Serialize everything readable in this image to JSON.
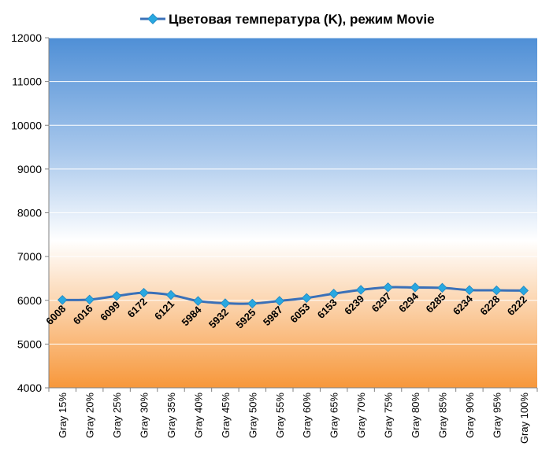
{
  "chart_data": {
    "type": "line",
    "title": "Цветовая температура (K), режим Movie",
    "categories": [
      "Gray 15%",
      "Gray 20%",
      "Gray 25%",
      "Gray 30%",
      "Gray 35%",
      "Gray 40%",
      "Gray 45%",
      "Gray 50%",
      "Gray 55%",
      "Gray 60%",
      "Gray 65%",
      "Gray 70%",
      "Gray 75%",
      "Gray 80%",
      "Gray 85%",
      "Gray 90%",
      "Gray 95%",
      "Gray 100%"
    ],
    "series": [
      {
        "name": "Цветовая температура (K), режим Movie",
        "values": [
          6008,
          6016,
          6099,
          6172,
          6121,
          5984,
          5932,
          5925,
          5987,
          6053,
          6153,
          6239,
          6297,
          6294,
          6285,
          6234,
          6228,
          6222
        ],
        "color": "#3a70b8",
        "marker_color": "#29a8e0"
      }
    ],
    "ylim": [
      4000,
      12000
    ],
    "yticks": [
      "4000",
      "5000",
      "6000",
      "7000",
      "8000",
      "9000",
      "10000",
      "11000",
      "12000"
    ],
    "grid": true,
    "legend": "top",
    "background_gradient": [
      "#4f8fd6",
      "#ffffff",
      "#f7973a"
    ]
  }
}
